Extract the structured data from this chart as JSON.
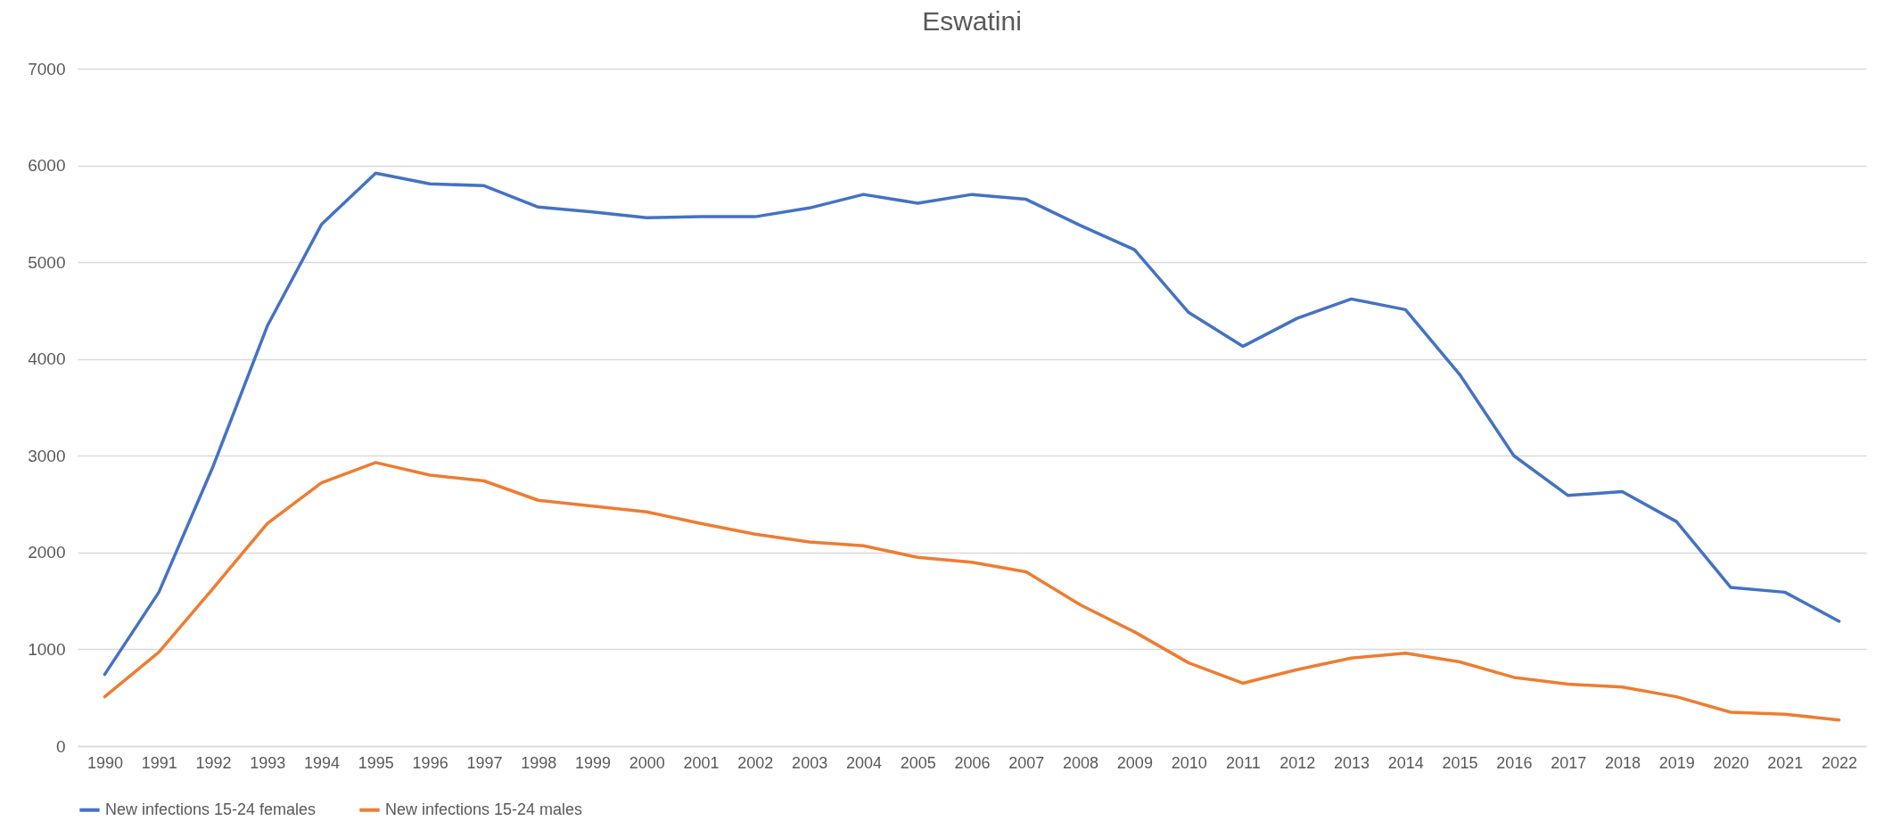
{
  "chart_data": {
    "type": "line",
    "title": "Eswatini",
    "categories": [
      "1990",
      "1991",
      "1992",
      "1993",
      "1994",
      "1995",
      "1996",
      "1997",
      "1998",
      "1999",
      "2000",
      "2001",
      "2002",
      "2003",
      "2004",
      "2005",
      "2006",
      "2007",
      "2008",
      "2009",
      "2010",
      "2011",
      "2012",
      "2013",
      "2014",
      "2015",
      "2016",
      "2017",
      "2018",
      "2019",
      "2020",
      "2021",
      "2022"
    ],
    "series": [
      {
        "name": "New infections 15-24 females",
        "color": "#4472c4",
        "values": [
          740,
          1590,
          2890,
          4340,
          5390,
          5920,
          5810,
          5790,
          5570,
          5520,
          5460,
          5470,
          5470,
          5560,
          5700,
          5610,
          5700,
          5650,
          5380,
          5130,
          4480,
          4130,
          4420,
          4620,
          4510,
          3840,
          3000,
          2590,
          2630,
          2320,
          1640,
          1590,
          1290
        ]
      },
      {
        "name": "New infections 15-24 males",
        "color": "#ed7d31",
        "values": [
          510,
          970,
          1630,
          2300,
          2720,
          2930,
          2800,
          2740,
          2540,
          2480,
          2420,
          2300,
          2190,
          2110,
          2070,
          1950,
          1900,
          1800,
          1460,
          1180,
          860,
          650,
          790,
          910,
          960,
          870,
          710,
          640,
          610,
          510,
          350,
          330,
          270
        ]
      }
    ],
    "ylim": [
      0,
      7000
    ],
    "yticks": [
      0,
      1000,
      2000,
      3000,
      4000,
      5000,
      6000,
      7000
    ],
    "grid": "y",
    "legend": "bottom",
    "line_style": "solid",
    "marker": "none"
  }
}
